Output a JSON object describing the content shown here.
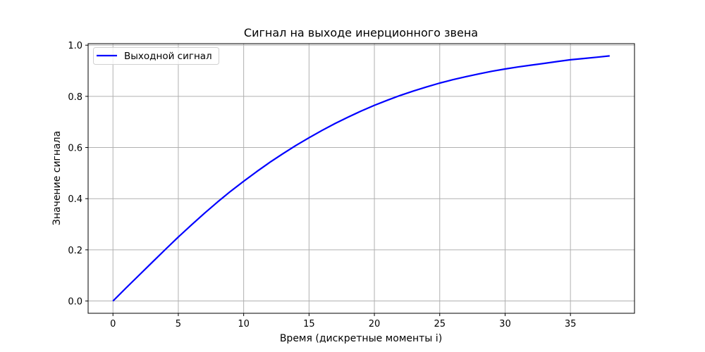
{
  "chart_data": {
    "type": "line",
    "title": "Сигнал на выходе инерционного звена",
    "xlabel": "Время (дискретные моменты i)",
    "ylabel": "Значение сигнала",
    "xlim": [
      -1.9,
      39.9
    ],
    "ylim": [
      -0.048,
      1.006
    ],
    "xticks": [
      0,
      5,
      10,
      15,
      20,
      25,
      30,
      35
    ],
    "xtick_labels": [
      "0",
      "5",
      "10",
      "15",
      "20",
      "25",
      "30",
      "35"
    ],
    "yticks": [
      0.0,
      0.2,
      0.4,
      0.6,
      0.8,
      1.0
    ],
    "ytick_labels": [
      "0.0",
      "0.2",
      "0.4",
      "0.6",
      "0.8",
      "1.0"
    ],
    "grid": true,
    "legend_position": "top-left",
    "series": [
      {
        "name": "Выходной сигнал",
        "color": "#0000ff",
        "x": [
          0,
          1,
          2,
          3,
          4,
          5,
          6,
          7,
          8,
          9,
          10,
          11,
          12,
          13,
          14,
          15,
          16,
          17,
          18,
          19,
          20,
          21,
          22,
          23,
          24,
          25,
          26,
          27,
          28,
          29,
          30,
          31,
          32,
          33,
          34,
          35,
          36,
          37,
          38
        ],
        "y": [
          0,
          0.051,
          0.101,
          0.151,
          0.201,
          0.25,
          0.297,
          0.343,
          0.387,
          0.429,
          0.468,
          0.506,
          0.542,
          0.576,
          0.608,
          0.638,
          0.667,
          0.694,
          0.719,
          0.743,
          0.765,
          0.785,
          0.804,
          0.821,
          0.837,
          0.852,
          0.865,
          0.877,
          0.888,
          0.898,
          0.907,
          0.915,
          0.922,
          0.929,
          0.936,
          0.943,
          0.948,
          0.953,
          0.958
        ]
      }
    ]
  }
}
